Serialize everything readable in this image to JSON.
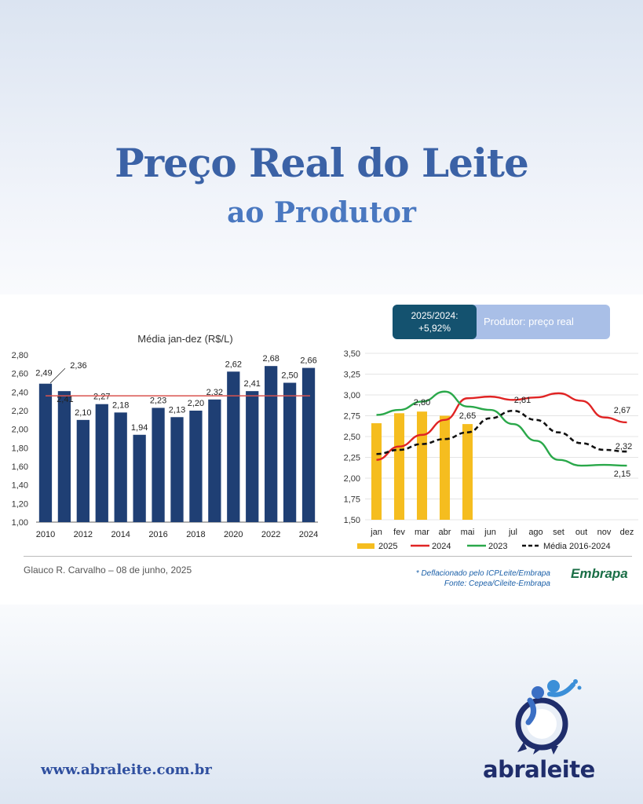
{
  "header": {
    "title": "Preço Real do Leite",
    "subtitle": "ao Produtor"
  },
  "badge": {
    "period": "2025/2024:",
    "change": "+5,92%",
    "label": "Produtor: preço real"
  },
  "chart_data": [
    {
      "type": "bar",
      "title": "Média jan-dez (R$/L)",
      "categories": [
        "2010",
        "2011",
        "2012",
        "2013",
        "2014",
        "2015",
        "2016",
        "2017",
        "2018",
        "2019",
        "2020",
        "2021",
        "2022",
        "2023",
        "2024"
      ],
      "x_tick_labels": [
        "2010",
        "2012",
        "2014",
        "2016",
        "2018",
        "2020",
        "2022",
        "2024"
      ],
      "values": [
        2.49,
        2.41,
        2.1,
        2.27,
        2.18,
        1.94,
        2.23,
        2.13,
        2.2,
        2.32,
        2.62,
        2.41,
        2.68,
        2.5,
        2.66
      ],
      "labels": [
        "2,49",
        "2,41",
        "2,10",
        "2,27",
        "2,18",
        "1,94",
        "2,23",
        "2,13",
        "2,20",
        "2,32",
        "2,62",
        "2,41",
        "2,68",
        "2,50",
        "2,66"
      ],
      "extra_label": "2,36",
      "average_line": 2.36,
      "ylim": [
        1.0,
        2.8
      ],
      "y_ticks": [
        1.0,
        1.2,
        1.4,
        1.6,
        1.8,
        2.0,
        2.2,
        2.4,
        2.6,
        2.8
      ],
      "y_tick_labels": [
        "1,00",
        "1,20",
        "1,40",
        "1,60",
        "1,80",
        "2,00",
        "2,20",
        "2,40",
        "2,60",
        "2,80"
      ],
      "colors": {
        "bar": "#1f3f74",
        "avg": "#d9534f"
      }
    },
    {
      "type": "line",
      "categories": [
        "jan",
        "fev",
        "mar",
        "abr",
        "mai",
        "jun",
        "jul",
        "ago",
        "set",
        "out",
        "nov",
        "dez"
      ],
      "ylim": [
        1.5,
        3.5
      ],
      "y_ticks": [
        1.5,
        1.75,
        2.0,
        2.25,
        2.5,
        2.75,
        3.0,
        3.25,
        3.5
      ],
      "y_tick_labels": [
        "1,50",
        "1,75",
        "2,00",
        "2,25",
        "2,50",
        "2,75",
        "3,00",
        "3,25",
        "3,50"
      ],
      "bars": {
        "name": "2025",
        "values": [
          2.66,
          2.78,
          2.8,
          2.75,
          2.65
        ],
        "color": "#f5bd1f"
      },
      "series": [
        {
          "name": "2024",
          "color": "#e02424",
          "dash": false,
          "values": [
            2.22,
            2.38,
            2.52,
            2.7,
            2.96,
            2.98,
            2.94,
            2.97,
            3.02,
            2.93,
            2.73,
            2.67
          ]
        },
        {
          "name": "2023",
          "color": "#2aa84a",
          "dash": false,
          "values": [
            2.76,
            2.82,
            2.92,
            3.04,
            2.86,
            2.82,
            2.65,
            2.45,
            2.22,
            2.15,
            2.16,
            2.15
          ]
        },
        {
          "name": "Média 2016-2024",
          "color": "#111111",
          "dash": true,
          "values": [
            2.29,
            2.34,
            2.41,
            2.47,
            2.55,
            2.72,
            2.81,
            2.7,
            2.55,
            2.42,
            2.34,
            2.32
          ]
        }
      ],
      "annotations": [
        {
          "text": "2,80",
          "x": "mar",
          "y": 2.8
        },
        {
          "text": "2,65",
          "x": "mai",
          "y": 2.65
        },
        {
          "text": "2,81",
          "x": "jul",
          "y": 2.81
        },
        {
          "text": "2,67",
          "x": "dez",
          "y": 2.67
        },
        {
          "text": "2,32",
          "x": "dez",
          "y": 2.32
        },
        {
          "text": "2,15",
          "x": "dez",
          "y": 2.15
        }
      ],
      "legend": [
        "2025",
        "2024",
        "2023",
        "Média 2016-2024"
      ]
    }
  ],
  "footer": {
    "author": "Glauco R. Carvalho – 08 de junho, 2025",
    "note1": "* Deflacionado pelo ICPLeite/Embrapa",
    "note2": "Fonte: Cepea/Cileite-Embrapa",
    "embrapa": "Embrapa"
  },
  "site": {
    "url": "www.abraleite.com.br",
    "brand": "abraleite"
  }
}
